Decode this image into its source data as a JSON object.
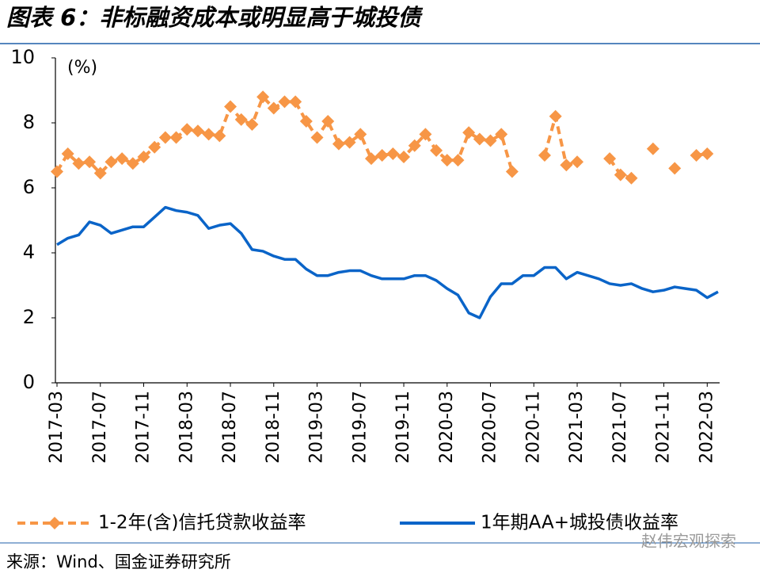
{
  "chart_data": {
    "type": "line",
    "title": "图表 6：非标融资成本或明显高于城投债",
    "y_label": "(%)",
    "source": "来源：Wind、国金证券研究所",
    "watermark": "赵伟宏观探索",
    "categories": [
      "2017-03",
      null,
      null,
      null,
      "2017-07",
      null,
      null,
      null,
      "2017-11",
      null,
      null,
      null,
      "2018-03",
      null,
      null,
      null,
      "2018-07",
      null,
      null,
      null,
      "2018-11",
      null,
      null,
      null,
      "2019-03",
      null,
      null,
      null,
      "2019-07",
      null,
      null,
      null,
      "2019-11",
      null,
      null,
      null,
      "2020-03",
      null,
      null,
      null,
      "2020-07",
      null,
      null,
      null,
      "2020-11",
      null,
      null,
      null,
      "2021-03",
      null,
      null,
      null,
      "2021-07",
      null,
      null,
      null,
      "2021-11",
      null,
      null,
      null,
      "2022-03",
      null
    ],
    "series": [
      {
        "name": "1-2年(含)信托贷款收益率",
        "color": "#f79646",
        "style": "dashed-diamond",
        "values": [
          6.5,
          7.05,
          6.75,
          6.8,
          6.45,
          6.8,
          6.9,
          6.75,
          6.95,
          7.25,
          7.55,
          7.55,
          7.8,
          7.75,
          7.65,
          7.6,
          8.5,
          8.1,
          7.95,
          8.8,
          8.45,
          8.65,
          8.65,
          8.05,
          7.55,
          8.05,
          7.35,
          7.4,
          7.65,
          6.9,
          7.0,
          7.05,
          6.95,
          7.3,
          7.65,
          7.15,
          6.85,
          6.85,
          7.7,
          7.5,
          7.45,
          7.65,
          6.5,
          null,
          null,
          7.0,
          8.2,
          6.7,
          6.8,
          null,
          null,
          6.9,
          6.4,
          6.3,
          null,
          7.2,
          null,
          6.6,
          null,
          7.0,
          7.05,
          null
        ]
      },
      {
        "name": "1年期AA+城投债收益率",
        "color": "#0a64c8",
        "style": "solid",
        "values": [
          4.25,
          4.45,
          4.55,
          4.95,
          4.85,
          4.6,
          4.7,
          4.8,
          4.8,
          5.1,
          5.4,
          5.3,
          5.25,
          5.15,
          4.75,
          4.85,
          4.9,
          4.6,
          4.1,
          4.05,
          3.9,
          3.8,
          3.8,
          3.5,
          3.3,
          3.3,
          3.4,
          3.45,
          3.45,
          3.3,
          3.2,
          3.2,
          3.2,
          3.3,
          3.3,
          3.15,
          2.9,
          2.7,
          2.15,
          2.0,
          2.65,
          3.05,
          3.05,
          3.3,
          3.3,
          3.55,
          3.55,
          3.2,
          3.4,
          3.3,
          3.2,
          3.05,
          3.0,
          3.05,
          2.9,
          2.8,
          2.85,
          2.95,
          2.9,
          2.85,
          2.62,
          2.8
        ]
      }
    ],
    "ylim": [
      0,
      10
    ],
    "yticks": [
      0,
      2,
      4,
      6,
      8,
      10
    ],
    "grid": false
  }
}
